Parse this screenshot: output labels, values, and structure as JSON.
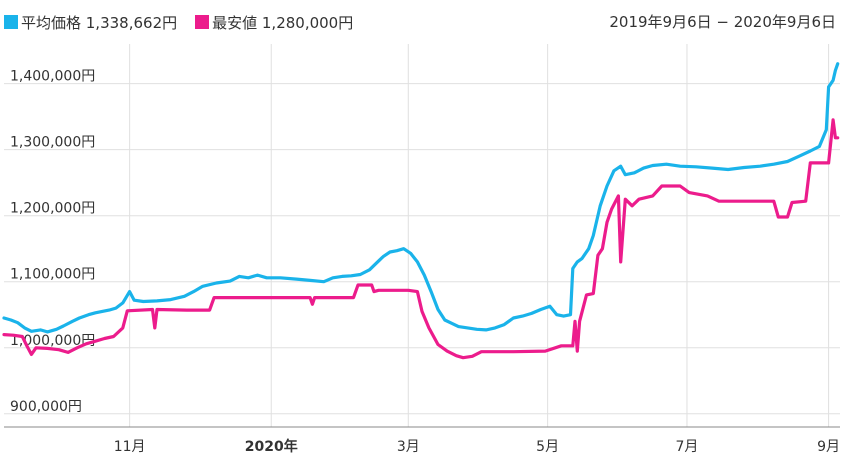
{
  "legend": {
    "avg_label": "平均価格 1,338,662円",
    "min_label": "最安値 1,280,000円"
  },
  "date_range": "2019年9月6日 − 2020年9月6日",
  "colors": {
    "avg": "#1ab3ea",
    "min": "#ec1c8c",
    "grid": "#e0e0e0",
    "axis": "#888888"
  },
  "chart_data": {
    "type": "line",
    "ylim": [
      880000,
      1460000
    ],
    "yticks": [
      {
        "value": 900000,
        "label": "900,000円"
      },
      {
        "value": 1000000,
        "label": "1,000,000円"
      },
      {
        "value": 1100000,
        "label": "1,100,000円"
      },
      {
        "value": 1200000,
        "label": "1,200,000円"
      },
      {
        "value": 1300000,
        "label": "1,300,000円"
      },
      {
        "value": 1400000,
        "label": "1,400,000円"
      }
    ],
    "xlim": [
      "2019-09-06",
      "2020-09-06"
    ],
    "xticks": [
      {
        "date": "2019-10-31",
        "label": "11月",
        "bold": false
      },
      {
        "date": "2020-01-01",
        "label": "2020年",
        "bold": true
      },
      {
        "date": "2020-03-01",
        "label": "3月",
        "bold": false
      },
      {
        "date": "2020-05-01",
        "label": "5月",
        "bold": false
      },
      {
        "date": "2020-07-01",
        "label": "7月",
        "bold": false
      },
      {
        "date": "2020-09-01",
        "label": "9月",
        "bold": false
      }
    ],
    "series": [
      {
        "name": "平均価格",
        "color": "#1ab3ea",
        "points": [
          [
            "2019-09-06",
            1045000
          ],
          [
            "2019-09-09",
            1042000
          ],
          [
            "2019-09-12",
            1038000
          ],
          [
            "2019-09-15",
            1030000
          ],
          [
            "2019-09-18",
            1025000
          ],
          [
            "2019-09-22",
            1027000
          ],
          [
            "2019-09-25",
            1024000
          ],
          [
            "2019-09-29",
            1028000
          ],
          [
            "2019-10-02",
            1033000
          ],
          [
            "2019-10-06",
            1040000
          ],
          [
            "2019-10-09",
            1045000
          ],
          [
            "2019-10-13",
            1050000
          ],
          [
            "2019-10-16",
            1053000
          ],
          [
            "2019-10-19",
            1055000
          ],
          [
            "2019-10-22",
            1057000
          ],
          [
            "2019-10-25",
            1060000
          ],
          [
            "2019-10-28",
            1068000
          ],
          [
            "2019-10-31",
            1085000
          ],
          [
            "2019-11-02",
            1072000
          ],
          [
            "2019-11-06",
            1070000
          ],
          [
            "2019-11-12",
            1071000
          ],
          [
            "2019-11-18",
            1073000
          ],
          [
            "2019-11-24",
            1078000
          ],
          [
            "2019-11-28",
            1085000
          ],
          [
            "2019-12-02",
            1093000
          ],
          [
            "2019-12-08",
            1098000
          ],
          [
            "2019-12-14",
            1101000
          ],
          [
            "2019-12-18",
            1108000
          ],
          [
            "2019-12-22",
            1106000
          ],
          [
            "2019-12-26",
            1110000
          ],
          [
            "2019-12-30",
            1106000
          ],
          [
            "2020-01-05",
            1106000
          ],
          [
            "2020-01-12",
            1104000
          ],
          [
            "2020-01-18",
            1102000
          ],
          [
            "2020-01-24",
            1100000
          ],
          [
            "2020-01-28",
            1106000
          ],
          [
            "2020-02-01",
            1108000
          ],
          [
            "2020-02-05",
            1109000
          ],
          [
            "2020-02-09",
            1111000
          ],
          [
            "2020-02-13",
            1118000
          ],
          [
            "2020-02-16",
            1128000
          ],
          [
            "2020-02-19",
            1138000
          ],
          [
            "2020-02-22",
            1145000
          ],
          [
            "2020-02-25",
            1147000
          ],
          [
            "2020-02-28",
            1150000
          ],
          [
            "2020-03-02",
            1143000
          ],
          [
            "2020-03-05",
            1130000
          ],
          [
            "2020-03-08",
            1110000
          ],
          [
            "2020-03-11",
            1085000
          ],
          [
            "2020-03-14",
            1058000
          ],
          [
            "2020-03-17",
            1042000
          ],
          [
            "2020-03-20",
            1037000
          ],
          [
            "2020-03-23",
            1032000
          ],
          [
            "2020-03-27",
            1030000
          ],
          [
            "2020-03-31",
            1028000
          ],
          [
            "2020-04-04",
            1027000
          ],
          [
            "2020-04-08",
            1030000
          ],
          [
            "2020-04-12",
            1035000
          ],
          [
            "2020-04-16",
            1045000
          ],
          [
            "2020-04-20",
            1048000
          ],
          [
            "2020-04-24",
            1052000
          ],
          [
            "2020-04-28",
            1058000
          ],
          [
            "2020-05-02",
            1063000
          ],
          [
            "2020-05-05",
            1050000
          ],
          [
            "2020-05-08",
            1048000
          ],
          [
            "2020-05-11",
            1050000
          ],
          [
            "2020-05-12",
            1120000
          ],
          [
            "2020-05-14",
            1130000
          ],
          [
            "2020-05-16",
            1135000
          ],
          [
            "2020-05-19",
            1150000
          ],
          [
            "2020-05-21",
            1170000
          ],
          [
            "2020-05-24",
            1215000
          ],
          [
            "2020-05-27",
            1245000
          ],
          [
            "2020-05-30",
            1268000
          ],
          [
            "2020-06-02",
            1275000
          ],
          [
            "2020-06-04",
            1262000
          ],
          [
            "2020-06-08",
            1265000
          ],
          [
            "2020-06-12",
            1272000
          ],
          [
            "2020-06-16",
            1276000
          ],
          [
            "2020-06-22",
            1278000
          ],
          [
            "2020-06-28",
            1275000
          ],
          [
            "2020-07-05",
            1274000
          ],
          [
            "2020-07-12",
            1272000
          ],
          [
            "2020-07-19",
            1270000
          ],
          [
            "2020-07-26",
            1273000
          ],
          [
            "2020-08-02",
            1275000
          ],
          [
            "2020-08-08",
            1278000
          ],
          [
            "2020-08-14",
            1282000
          ],
          [
            "2020-08-19",
            1290000
          ],
          [
            "2020-08-24",
            1298000
          ],
          [
            "2020-08-28",
            1305000
          ],
          [
            "2020-08-31",
            1330000
          ],
          [
            "2020-09-01",
            1395000
          ],
          [
            "2020-09-02",
            1400000
          ],
          [
            "2020-09-03",
            1405000
          ],
          [
            "2020-09-04",
            1420000
          ],
          [
            "2020-09-05",
            1430000
          ]
        ]
      },
      {
        "name": "最安値",
        "color": "#ec1c8c",
        "points": [
          [
            "2019-09-06",
            1020000
          ],
          [
            "2019-09-10",
            1019000
          ],
          [
            "2019-09-14",
            1017000
          ],
          [
            "2019-09-16",
            1003000
          ],
          [
            "2019-09-18",
            990000
          ],
          [
            "2019-09-20",
            1000000
          ],
          [
            "2019-09-25",
            999000
          ],
          [
            "2019-09-30",
            997000
          ],
          [
            "2019-10-04",
            993000
          ],
          [
            "2019-10-08",
            1000000
          ],
          [
            "2019-10-12",
            1006000
          ],
          [
            "2019-10-16",
            1010000
          ],
          [
            "2019-10-20",
            1014000
          ],
          [
            "2019-10-24",
            1017000
          ],
          [
            "2019-10-28",
            1030000
          ],
          [
            "2019-10-30",
            1056000
          ],
          [
            "2019-11-10",
            1058000
          ],
          [
            "2019-11-11",
            1030000
          ],
          [
            "2019-11-12",
            1058000
          ],
          [
            "2019-11-25",
            1057000
          ],
          [
            "2019-12-05",
            1057000
          ],
          [
            "2019-12-07",
            1076000
          ],
          [
            "2019-12-30",
            1076000
          ],
          [
            "2020-01-18",
            1076000
          ],
          [
            "2020-01-19",
            1066000
          ],
          [
            "2020-01-20",
            1076000
          ],
          [
            "2020-02-06",
            1076000
          ],
          [
            "2020-02-08",
            1095000
          ],
          [
            "2020-02-14",
            1095000
          ],
          [
            "2020-02-15",
            1085000
          ],
          [
            "2020-02-17",
            1087000
          ],
          [
            "2020-03-01",
            1087000
          ],
          [
            "2020-03-05",
            1085000
          ],
          [
            "2020-03-07",
            1055000
          ],
          [
            "2020-03-10",
            1030000
          ],
          [
            "2020-03-14",
            1005000
          ],
          [
            "2020-03-18",
            995000
          ],
          [
            "2020-03-22",
            988000
          ],
          [
            "2020-03-25",
            985000
          ],
          [
            "2020-03-29",
            987000
          ],
          [
            "2020-04-02",
            994000
          ],
          [
            "2020-04-16",
            994000
          ],
          [
            "2020-04-30",
            995000
          ],
          [
            "2020-05-07",
            1003000
          ],
          [
            "2020-05-12",
            1003000
          ],
          [
            "2020-05-13",
            1040000
          ],
          [
            "2020-05-14",
            995000
          ],
          [
            "2020-05-15",
            1040000
          ],
          [
            "2020-05-18",
            1080000
          ],
          [
            "2020-05-21",
            1082000
          ],
          [
            "2020-05-23",
            1140000
          ],
          [
            "2020-05-25",
            1150000
          ],
          [
            "2020-05-27",
            1190000
          ],
          [
            "2020-05-29",
            1210000
          ],
          [
            "2020-06-01",
            1230000
          ],
          [
            "2020-06-02",
            1130000
          ],
          [
            "2020-06-04",
            1225000
          ],
          [
            "2020-06-07",
            1215000
          ],
          [
            "2020-06-10",
            1225000
          ],
          [
            "2020-06-16",
            1230000
          ],
          [
            "2020-06-20",
            1245000
          ],
          [
            "2020-06-28",
            1245000
          ],
          [
            "2020-07-02",
            1235000
          ],
          [
            "2020-07-10",
            1230000
          ],
          [
            "2020-07-15",
            1222000
          ],
          [
            "2020-08-08",
            1222000
          ],
          [
            "2020-08-10",
            1198000
          ],
          [
            "2020-08-14",
            1198000
          ],
          [
            "2020-08-16",
            1220000
          ],
          [
            "2020-08-22",
            1222000
          ],
          [
            "2020-08-24",
            1280000
          ],
          [
            "2020-09-01",
            1280000
          ],
          [
            "2020-09-03",
            1345000
          ],
          [
            "2020-09-04",
            1318000
          ],
          [
            "2020-09-05",
            1318000
          ]
        ]
      }
    ]
  }
}
